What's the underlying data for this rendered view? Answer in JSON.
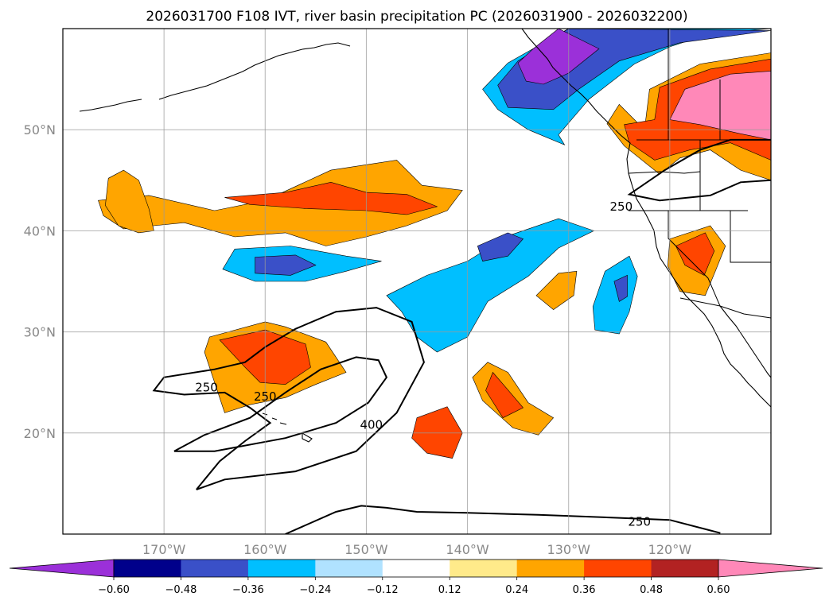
{
  "chart_data": {
    "type": "heatmap",
    "title": "2026031700 F108 IVT, river basin precipitation PC (2026031900 - 2026032200)",
    "lon_range": [
      -180,
      -110
    ],
    "lat_range": [
      10,
      60
    ],
    "lon_ticks": [
      {
        "value": -170,
        "label": "170°W"
      },
      {
        "value": -160,
        "label": "160°W"
      },
      {
        "value": -150,
        "label": "150°W"
      },
      {
        "value": -140,
        "label": "140°W"
      },
      {
        "value": -130,
        "label": "130°W"
      },
      {
        "value": -120,
        "label": "120°W"
      }
    ],
    "lat_ticks": [
      {
        "value": 20,
        "label": "20°N"
      },
      {
        "value": 30,
        "label": "30°N"
      },
      {
        "value": 40,
        "label": "40°N"
      },
      {
        "value": 50,
        "label": "50°N"
      }
    ],
    "grid": true,
    "colorbar": {
      "location": "bottom",
      "extend": "both",
      "levels": [
        -0.6,
        -0.48,
        -0.36,
        -0.24,
        -0.12,
        0.12,
        0.24,
        0.36,
        0.48,
        0.6
      ],
      "tick_labels": [
        "−0.60",
        "−0.48",
        "−0.36",
        "−0.24",
        "−0.12",
        "0.12",
        "0.24",
        "0.36",
        "0.48",
        "0.60"
      ],
      "colors": [
        "#9b30d9",
        "#00008b",
        "#3a50c8",
        "#00bfff",
        "#b0e2ff",
        "#ffffff",
        "#ffea8a",
        "#ffa500",
        "#ff4500",
        "#b22222",
        "#ff88b8"
      ]
    },
    "contour_labels": [
      {
        "text": "250",
        "lon": -165.8,
        "lat": 24.5
      },
      {
        "text": "250",
        "lon": -160.0,
        "lat": 23.6
      },
      {
        "text": "400",
        "lon": -149.5,
        "lat": 20.8
      },
      {
        "text": "250",
        "lon": -124.8,
        "lat": 42.4
      },
      {
        "text": "250",
        "lon": -123.0,
        "lat": 11.2
      }
    ],
    "contours": [
      {
        "name": "ivt-250-outer",
        "level": 250,
        "points": [
          [
            -166.8,
            14.4
          ],
          [
            -164,
            15.4
          ],
          [
            -157,
            16.2
          ],
          [
            -151,
            18.2
          ],
          [
            -147,
            22
          ],
          [
            -144.3,
            27
          ],
          [
            -145.5,
            31
          ],
          [
            -149,
            32.4
          ],
          [
            -153,
            32
          ],
          [
            -157,
            30.3
          ],
          [
            -160,
            28.5
          ],
          [
            -162,
            27
          ],
          [
            -165,
            26.3
          ],
          [
            -170,
            25.5
          ],
          [
            -171,
            24.2
          ],
          [
            -168,
            23.8
          ],
          [
            -164,
            24
          ],
          [
            -161.5,
            22.5
          ],
          [
            -159.5,
            21
          ],
          [
            -162,
            19.2
          ],
          [
            -164.5,
            17.2
          ],
          [
            -166.8,
            14.4
          ]
        ]
      },
      {
        "name": "ivt-400",
        "level": 400,
        "points": [
          [
            -169,
            18.2
          ],
          [
            -165,
            18.2
          ],
          [
            -158,
            19.5
          ],
          [
            -153,
            21
          ],
          [
            -149.8,
            23
          ],
          [
            -148,
            25.5
          ],
          [
            -148.8,
            27.2
          ],
          [
            -151,
            27.5
          ],
          [
            -154.5,
            26.3
          ],
          [
            -158,
            24
          ],
          [
            -161.5,
            21.5
          ],
          [
            -166,
            19.8
          ],
          [
            -169,
            18.2
          ]
        ]
      },
      {
        "name": "ivt-250-south",
        "level": 250,
        "points": [
          [
            -158,
            10
          ],
          [
            -153,
            12.2
          ],
          [
            -150.5,
            12.8
          ],
          [
            -148,
            12.6
          ],
          [
            -145,
            12.2
          ],
          [
            -140,
            12.1
          ],
          [
            -133,
            11.9
          ],
          [
            -125,
            11.6
          ],
          [
            -120,
            11.4
          ],
          [
            -115,
            10.1
          ]
        ]
      },
      {
        "name": "ivt-250-northeast",
        "level": 250,
        "points": [
          [
            -110,
            49
          ],
          [
            -114,
            49
          ],
          [
            -117,
            48
          ],
          [
            -120.5,
            46
          ],
          [
            -124,
            43.6
          ],
          [
            -121,
            43
          ],
          [
            -116,
            43.5
          ],
          [
            -113,
            44.8
          ],
          [
            -110,
            45
          ]
        ]
      }
    ],
    "regions": [
      {
        "name": "pc-positive-pnw-outer",
        "color_index": 7,
        "points": [
          [
            -122.5,
            50
          ],
          [
            -122,
            54
          ],
          [
            -117,
            56.5
          ],
          [
            -110,
            57.6
          ],
          [
            -110,
            45
          ],
          [
            -113,
            46
          ],
          [
            -116,
            48
          ],
          [
            -119,
            47.2
          ],
          [
            -121,
            45.6
          ],
          [
            -124.5,
            48.4
          ],
          [
            -126.2,
            50.6
          ],
          [
            -125,
            52.5
          ]
        ]
      },
      {
        "name": "pc-positive-pnw-red",
        "color_index": 8,
        "points": [
          [
            -121.5,
            51
          ],
          [
            -121,
            54.2
          ],
          [
            -116,
            56
          ],
          [
            -110,
            57
          ],
          [
            -110,
            47
          ],
          [
            -114,
            48.7
          ],
          [
            -118,
            48
          ],
          [
            -121.5,
            47
          ],
          [
            -124,
            48.7
          ],
          [
            -124.5,
            50.5
          ]
        ]
      },
      {
        "name": "pc-positive-pnw-pink",
        "color_index": 10,
        "points": [
          [
            -120,
            51
          ],
          [
            -118.5,
            54
          ],
          [
            -114,
            55.5
          ],
          [
            -110,
            55.8
          ],
          [
            -110,
            49
          ],
          [
            -113,
            49.6
          ],
          [
            -117,
            50.5
          ]
        ]
      },
      {
        "name": "pc-negative-bc-outer",
        "color_index": 3,
        "points": [
          [
            -131,
            49.5
          ],
          [
            -128,
            53
          ],
          [
            -123.5,
            56.5
          ],
          [
            -120,
            58.2
          ],
          [
            -116,
            59.5
          ],
          [
            -110,
            60
          ],
          [
            -130,
            60
          ],
          [
            -136,
            56.6
          ],
          [
            -138.5,
            54
          ],
          [
            -137,
            52
          ],
          [
            -134,
            50
          ],
          [
            -130.4,
            48.5
          ]
        ]
      },
      {
        "name": "pc-negative-bc-mid",
        "color_index": 2,
        "points": [
          [
            -131.5,
            52
          ],
          [
            -129,
            54
          ],
          [
            -125,
            56.8
          ],
          [
            -119,
            58.6
          ],
          [
            -110,
            59.8
          ],
          [
            -130,
            60
          ],
          [
            -135,
            56.8
          ],
          [
            -137,
            54.4
          ],
          [
            -136,
            52.2
          ]
        ]
      },
      {
        "name": "pc-negative-bc-purple",
        "color_index": 0,
        "points": [
          [
            -132.5,
            54.5
          ],
          [
            -130,
            55.6
          ],
          [
            -127,
            58
          ],
          [
            -131,
            60
          ],
          [
            -133.5,
            58
          ],
          [
            -135,
            56.6
          ],
          [
            -134.2,
            54.8
          ]
        ]
      },
      {
        "name": "pc-positive-band-north",
        "color_index": 7,
        "points": [
          [
            -176.5,
            43
          ],
          [
            -171.5,
            43.5
          ],
          [
            -165,
            42
          ],
          [
            -160,
            43
          ],
          [
            -153.5,
            46
          ],
          [
            -147,
            47
          ],
          [
            -144.5,
            44.5
          ],
          [
            -140.5,
            44
          ],
          [
            -142,
            42
          ],
          [
            -146,
            40.5
          ],
          [
            -150,
            39.4
          ],
          [
            -154,
            38.5
          ],
          [
            -158,
            39.8
          ],
          [
            -163,
            39.4
          ],
          [
            -168,
            40.8
          ],
          [
            -171,
            40.5
          ],
          [
            -174,
            40.2
          ],
          [
            -176,
            41.5
          ]
        ]
      },
      {
        "name": "pc-positive-band-north-red",
        "color_index": 8,
        "points": [
          [
            -164,
            43.3
          ],
          [
            -158,
            43.8
          ],
          [
            -153.5,
            44.8
          ],
          [
            -150,
            43.8
          ],
          [
            -146,
            43.6
          ],
          [
            -143,
            42.4
          ],
          [
            -146,
            41.6
          ],
          [
            -150,
            42
          ],
          [
            -156,
            42.2
          ],
          [
            -161.5,
            42.6
          ]
        ]
      },
      {
        "name": "pc-positive-west-blob",
        "color_index": 7,
        "points": [
          [
            -175.5,
            45.2
          ],
          [
            -174,
            46
          ],
          [
            -172.5,
            45
          ],
          [
            -171.5,
            42.2
          ],
          [
            -171,
            40
          ],
          [
            -172.5,
            39.8
          ],
          [
            -174.5,
            40.5
          ],
          [
            -175.8,
            42.5
          ]
        ]
      },
      {
        "name": "pc-negative-central",
        "color_index": 3,
        "points": [
          [
            -163,
            38.2
          ],
          [
            -157.5,
            38.5
          ],
          [
            -152,
            37.5
          ],
          [
            -148.5,
            37
          ],
          [
            -152,
            36
          ],
          [
            -156,
            35
          ],
          [
            -161,
            35
          ],
          [
            -164.2,
            36.2
          ]
        ]
      },
      {
        "name": "pc-negative-central-mid",
        "color_index": 2,
        "points": [
          [
            -161,
            37.4
          ],
          [
            -157,
            37.6
          ],
          [
            -155,
            36.6
          ],
          [
            -157.5,
            35.6
          ],
          [
            -161,
            35.8
          ]
        ]
      },
      {
        "name": "pc-negative-diagonal",
        "color_index": 3,
        "points": [
          [
            -148,
            33.6
          ],
          [
            -144,
            35.6
          ],
          [
            -140,
            37
          ],
          [
            -136,
            39.5
          ],
          [
            -131,
            41.2
          ],
          [
            -127.5,
            40
          ],
          [
            -131,
            38.3
          ],
          [
            -134,
            35.5
          ],
          [
            -138,
            33
          ],
          [
            -140,
            29.5
          ],
          [
            -143,
            28
          ],
          [
            -145,
            29.5
          ],
          [
            -146.5,
            32
          ]
        ]
      },
      {
        "name": "pc-negative-diagonal-mid",
        "color_index": 2,
        "points": [
          [
            -139,
            38.5
          ],
          [
            -136,
            39.8
          ],
          [
            -134.5,
            39.2
          ],
          [
            -136,
            37.5
          ],
          [
            -138.5,
            37
          ]
        ]
      },
      {
        "name": "pc-negative-west-coast",
        "color_index": 3,
        "points": [
          [
            -126.4,
            36
          ],
          [
            -124,
            37.5
          ],
          [
            -123.2,
            35.5
          ],
          [
            -124,
            32
          ],
          [
            -125,
            29.8
          ],
          [
            -127.4,
            30.2
          ],
          [
            -127.6,
            32.5
          ]
        ]
      },
      {
        "name": "pc-negative-west-coast-mid",
        "color_index": 2,
        "points": [
          [
            -125.5,
            35
          ],
          [
            -124.2,
            35.6
          ],
          [
            -124.2,
            33.5
          ],
          [
            -125,
            33
          ]
        ]
      },
      {
        "name": "pc-positive-hawaii-north",
        "color_index": 7,
        "points": [
          [
            -165.5,
            29.5
          ],
          [
            -160,
            31
          ],
          [
            -158,
            30.5
          ],
          [
            -154,
            29
          ],
          [
            -152,
            26
          ],
          [
            -155,
            24.8
          ],
          [
            -158,
            23.5
          ],
          [
            -161.5,
            22.8
          ],
          [
            -164,
            22
          ],
          [
            -165,
            25
          ],
          [
            -166,
            28
          ]
        ]
      },
      {
        "name": "pc-positive-hawaii-north-red",
        "color_index": 8,
        "points": [
          [
            -164.5,
            29.2
          ],
          [
            -160,
            30.2
          ],
          [
            -156,
            28.8
          ],
          [
            -155.5,
            26.5
          ],
          [
            -158,
            24.8
          ],
          [
            -160.5,
            25
          ],
          [
            -162,
            26.5
          ]
        ]
      },
      {
        "name": "pc-positive-mid-pac",
        "color_index": 7,
        "points": [
          [
            -138,
            27
          ],
          [
            -136,
            26
          ],
          [
            -134,
            23
          ],
          [
            -131.5,
            21.5
          ],
          [
            -133,
            19.8
          ],
          [
            -135.5,
            20.5
          ],
          [
            -138.5,
            23.2
          ],
          [
            -139.5,
            25.5
          ]
        ]
      },
      {
        "name": "pc-positive-mid-pac-red",
        "color_index": 8,
        "points": [
          [
            -137.5,
            26
          ],
          [
            -136.2,
            24.5
          ],
          [
            -134.5,
            22.5
          ],
          [
            -136.5,
            21.5
          ],
          [
            -138.2,
            24.2
          ]
        ]
      },
      {
        "name": "pc-positive-south-blob",
        "color_index": 8,
        "points": [
          [
            -145,
            21.5
          ],
          [
            -142,
            22.6
          ],
          [
            -140.5,
            20
          ],
          [
            -141.5,
            17.5
          ],
          [
            -144,
            18
          ],
          [
            -145.5,
            19.5
          ]
        ]
      },
      {
        "name": "pc-positive-socal",
        "color_index": 7,
        "points": [
          [
            -120,
            39.2
          ],
          [
            -116,
            40.5
          ],
          [
            -114.5,
            38.5
          ],
          [
            -115.5,
            36
          ],
          [
            -116.5,
            33.6
          ],
          [
            -119,
            34
          ],
          [
            -120.2,
            36.5
          ]
        ]
      },
      {
        "name": "pc-positive-socal-red",
        "color_index": 8,
        "points": [
          [
            -119.4,
            38.5
          ],
          [
            -116.5,
            39.8
          ],
          [
            -115.6,
            38
          ],
          [
            -116.6,
            35.6
          ],
          [
            -118.5,
            36.6
          ]
        ]
      },
      {
        "name": "pc-positive-east-blob",
        "color_index": 7,
        "points": [
          [
            -131,
            35.8
          ],
          [
            -129.2,
            36
          ],
          [
            -129.5,
            33.6
          ],
          [
            -131.5,
            32.2
          ],
          [
            -133.2,
            33.6
          ]
        ]
      }
    ]
  }
}
